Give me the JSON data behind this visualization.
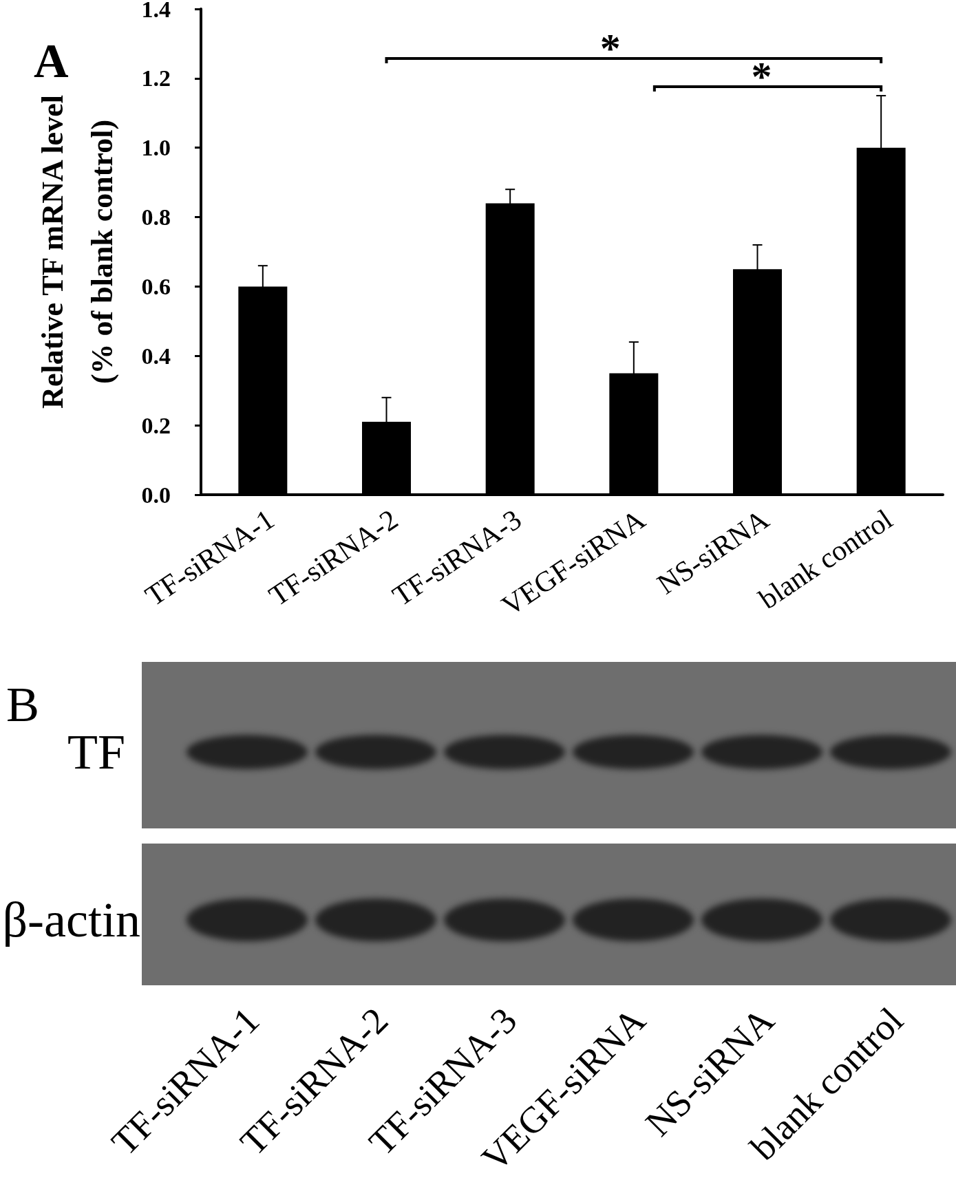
{
  "chart_data": [
    {
      "type": "bar",
      "title": "A",
      "ylabel": "Relative TF mRNA level\n(% of blank control)",
      "categories": [
        "TF-siRNA-1",
        "TF-siRNA-2",
        "TF-siRNA-3",
        "VEGF-siRNA",
        "NS-siRNA",
        "blank control"
      ],
      "values": [
        0.6,
        0.21,
        0.84,
        0.35,
        0.65,
        1.0
      ],
      "errors": [
        0.06,
        0.07,
        0.04,
        0.09,
        0.07,
        0.15
      ],
      "color": "#000000",
      "ylim": [
        0,
        1.4
      ],
      "yticks": [
        {
          "value": 0,
          "label": "0.0"
        },
        0.2,
        0.4,
        0.6,
        0.8,
        {
          "value": 1,
          "label": "1.0"
        },
        1.2,
        1.4
      ],
      "annotations": [
        "*",
        "*"
      ]
    },
    {
      "type": "other",
      "title": "B",
      "categories": [
        "TF-siRNA-1",
        "TF-siRNA-2",
        "TF-siRNA-3",
        "VEGF-siRNA",
        "NS-siRNA",
        "blank control"
      ],
      "annotations": [
        "TF",
        "β-actin"
      ]
    }
  ]
}
